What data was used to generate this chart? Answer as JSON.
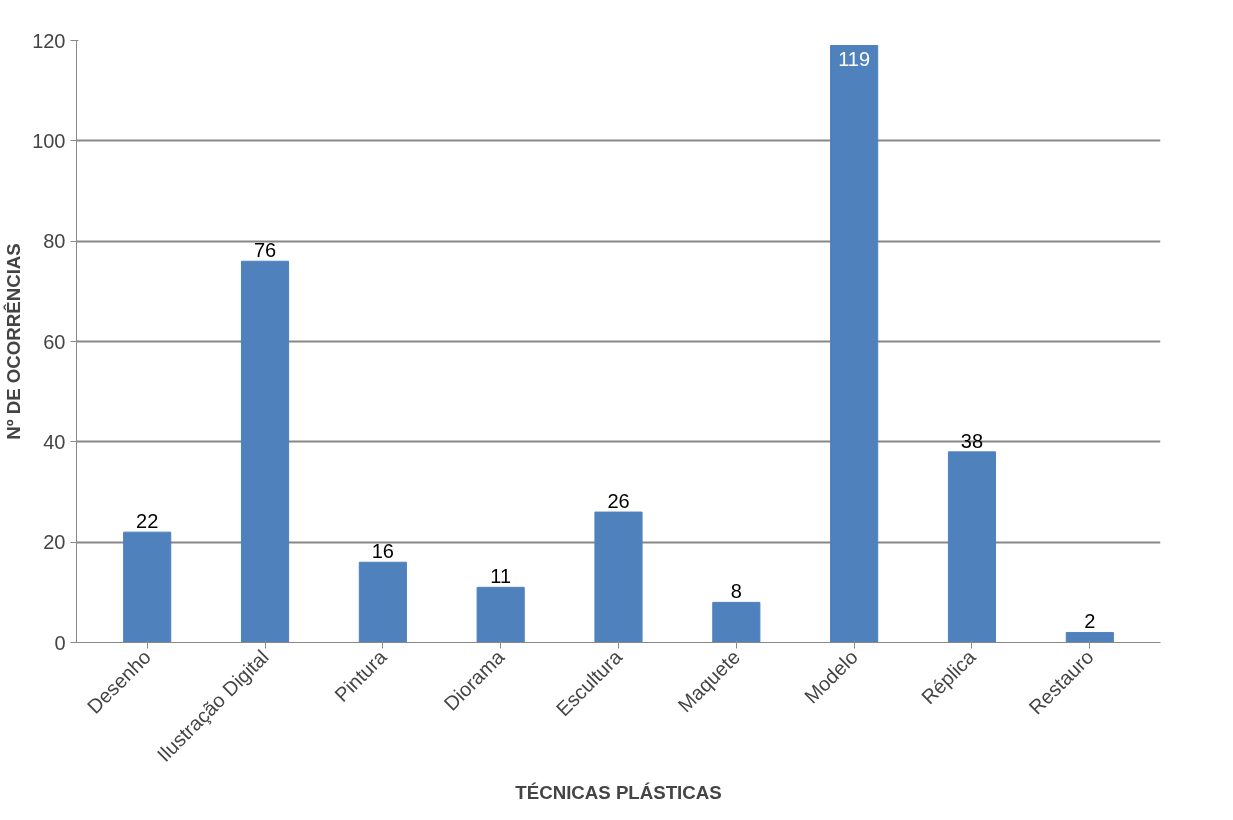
{
  "chart_data": {
    "type": "bar",
    "xlabel": "TÉCNICAS PLÁSTICAS",
    "ylabel": "Nº DE OCORRÊNCIAS",
    "categories": [
      "Desenho",
      "Ilustração Digital",
      "Pintura",
      "Diorama",
      "Escultura",
      "Maquete",
      "Modelo",
      "Réplica",
      "Restauro"
    ],
    "values": [
      22,
      76,
      16,
      11,
      26,
      8,
      119,
      38,
      2
    ],
    "color": "#4f81bd",
    "ylim": [
      0,
      120
    ],
    "yticks": [
      0,
      20,
      40,
      60,
      80,
      100,
      120
    ],
    "grid": "y",
    "data_labels": true
  }
}
